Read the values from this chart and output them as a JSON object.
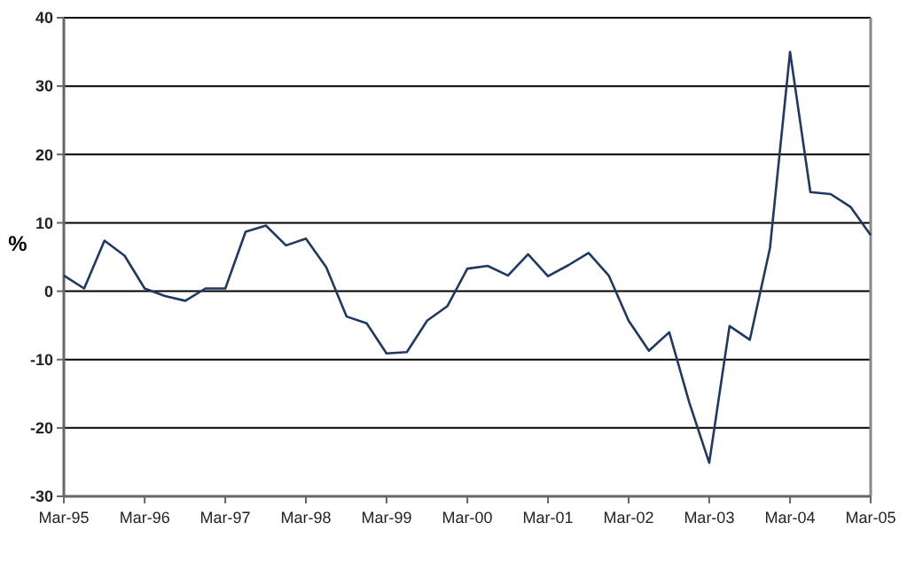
{
  "chart_data": {
    "type": "line",
    "ylabel": "%",
    "x": [
      "1995-03",
      "1995-06",
      "1995-09",
      "1995-12",
      "1996-03",
      "1996-06",
      "1996-09",
      "1996-12",
      "1997-03",
      "1997-06",
      "1997-09",
      "1997-12",
      "1998-03",
      "1998-06",
      "1998-09",
      "1998-12",
      "1999-03",
      "1999-06",
      "1999-09",
      "1999-12",
      "2000-03",
      "2000-06",
      "2000-09",
      "2000-12",
      "2001-03",
      "2001-06",
      "2001-09",
      "2001-12",
      "2002-03",
      "2002-06",
      "2002-09",
      "2002-12",
      "2003-03",
      "2003-06",
      "2003-09",
      "2003-12",
      "2004-03",
      "2004-06",
      "2004-09",
      "2004-12",
      "2005-03"
    ],
    "series": [
      {
        "color": "#1f3864",
        "values": [
          2.3,
          0.4,
          7.4,
          5.2,
          0.4,
          -0.7,
          -1.4,
          0.4,
          0.4,
          8.7,
          9.6,
          6.7,
          7.7,
          3.5,
          -3.7,
          -4.7,
          -9.1,
          -8.9,
          -4.3,
          -2.2,
          3.3,
          3.7,
          2.3,
          5.4,
          2.2,
          3.8,
          5.6,
          2.3,
          -4.3,
          -8.7,
          -6.0,
          -16.3,
          -25.1,
          -5.1,
          -7.1,
          6.3,
          35.0,
          14.5,
          14.2,
          12.3,
          8.2
        ]
      }
    ],
    "xlim": [
      "1995-03",
      "2005-03"
    ],
    "xticks": [
      {
        "value": "1995-03",
        "label": "Mar-95"
      },
      {
        "value": "1996-03",
        "label": "Mar-96"
      },
      {
        "value": "1997-03",
        "label": "Mar-97"
      },
      {
        "value": "1998-03",
        "label": "Mar-98"
      },
      {
        "value": "1999-03",
        "label": "Mar-99"
      },
      {
        "value": "2000-03",
        "label": "Mar-00"
      },
      {
        "value": "2001-03",
        "label": "Mar-01"
      },
      {
        "value": "2002-03",
        "label": "Mar-02"
      },
      {
        "value": "2003-03",
        "label": "Mar-03"
      },
      {
        "value": "2004-03",
        "label": "Mar-04"
      },
      {
        "value": "2005-03",
        "label": "Mar-05"
      }
    ],
    "ylim": [
      -30,
      40
    ],
    "yticks": [
      -30,
      -20,
      -10,
      0,
      10,
      20,
      30,
      40
    ],
    "grid": "y",
    "line_style": "solid",
    "marker": "none"
  }
}
